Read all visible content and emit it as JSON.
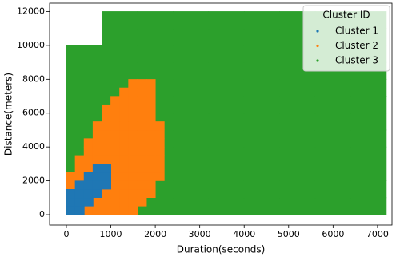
{
  "chart_data": {
    "type": "scatter",
    "x_label": "Duration(seconds)",
    "y_label": "Distance(meters)",
    "legend_title": "Cluster ID",
    "legend": "upper right",
    "grid": false,
    "xlim": [
      -378,
      7326
    ],
    "ylim": [
      -612,
      12494
    ],
    "xticks": [
      0,
      1000,
      2000,
      3000,
      4000,
      5000,
      6000,
      7000
    ],
    "yticks": [
      0,
      2000,
      4000,
      6000,
      8000,
      10000,
      12000
    ],
    "series": [
      {
        "name": "Cluster 1",
        "color": "#1f77b4",
        "x": [
          100,
          300,
          100,
          300,
          500,
          100,
          300,
          500,
          700,
          300,
          500,
          700,
          900,
          500,
          700,
          900,
          700,
          900
        ],
        "y": [
          250,
          250,
          750,
          750,
          750,
          1250,
          1250,
          1250,
          1250,
          1750,
          1750,
          1750,
          1750,
          2250,
          2250,
          2250,
          2750,
          2750
        ]
      },
      {
        "name": "Cluster 2",
        "color": "#ff7f0e",
        "x": [
          100,
          300,
          500,
          700,
          900,
          1100,
          1300,
          1500,
          100,
          300,
          500,
          700,
          900,
          1100,
          1300,
          1500,
          1700,
          100,
          300,
          500,
          700,
          900,
          1100,
          1300,
          1500,
          1700,
          1900,
          100,
          300,
          500,
          700,
          900,
          1100,
          1300,
          1500,
          1700,
          1900,
          100,
          300,
          500,
          700,
          900,
          1100,
          1300,
          1500,
          1700,
          1900,
          2100,
          300,
          500,
          700,
          900,
          1100,
          1300,
          1500,
          1700,
          1900,
          2100,
          300,
          500,
          700,
          900,
          1100,
          1300,
          1500,
          1700,
          1900,
          2100,
          500,
          700,
          900,
          1100,
          1300,
          1500,
          1700,
          1900,
          2100,
          500,
          700,
          900,
          1100,
          1300,
          1500,
          1700,
          1900,
          2100,
          700,
          900,
          1100,
          1300,
          1500,
          1700,
          1900,
          2100,
          700,
          900,
          1100,
          1300,
          1500,
          1700,
          1900,
          2100,
          900,
          1100,
          1300,
          1500,
          1700,
          1900,
          900,
          1100,
          1300,
          1500,
          1700,
          1900,
          1100,
          1300,
          1500,
          1700,
          1900,
          1300,
          1500,
          1700,
          1900,
          1500,
          1700,
          1900
        ],
        "y": [
          250,
          250,
          250,
          250,
          250,
          250,
          250,
          250,
          750,
          750,
          750,
          750,
          750,
          750,
          750,
          750,
          750,
          1250,
          1250,
          1250,
          1250,
          1250,
          1250,
          1250,
          1250,
          1250,
          1250,
          1750,
          1750,
          1750,
          1750,
          1750,
          1750,
          1750,
          1750,
          1750,
          1750,
          2250,
          2250,
          2250,
          2250,
          2250,
          2250,
          2250,
          2250,
          2250,
          2250,
          2250,
          2750,
          2750,
          2750,
          2750,
          2750,
          2750,
          2750,
          2750,
          2750,
          2750,
          3250,
          3250,
          3250,
          3250,
          3250,
          3250,
          3250,
          3250,
          3250,
          3250,
          3750,
          3750,
          3750,
          3750,
          3750,
          3750,
          3750,
          3750,
          3750,
          4250,
          4250,
          4250,
          4250,
          4250,
          4250,
          4250,
          4250,
          4250,
          4750,
          4750,
          4750,
          4750,
          4750,
          4750,
          4750,
          4750,
          5250,
          5250,
          5250,
          5250,
          5250,
          5250,
          5250,
          5250,
          5750,
          5750,
          5750,
          5750,
          5750,
          5750,
          6250,
          6250,
          6250,
          6250,
          6250,
          6250,
          6750,
          6750,
          6750,
          6750,
          6750,
          7250,
          7250,
          7250,
          7250,
          7750,
          7750,
          7750
        ]
      },
      {
        "name": "Cluster 3",
        "color": "#2ca02c",
        "x": [
          400,
          1200,
          2000,
          2800,
          3600,
          4400,
          5200,
          6000,
          6800,
          400,
          1200,
          2000,
          2800,
          3600,
          4400,
          5200,
          6000,
          6800,
          400,
          1200,
          2000,
          2800,
          3600,
          4400,
          5200,
          6000,
          6800,
          400,
          1200,
          2000,
          2800,
          3600,
          4400,
          5200,
          6000,
          6800,
          400,
          1200,
          2000,
          2800,
          3600,
          4400,
          5200,
          6000,
          6800,
          400,
          1200,
          2000,
          2800,
          3600,
          4400,
          5200,
          6000,
          6800,
          400,
          1200,
          2000,
          2800,
          3600,
          4400,
          5200,
          6000,
          6800,
          400,
          1200,
          2000,
          2800,
          3600,
          4400,
          5200,
          6000,
          6800,
          400,
          1200,
          2000,
          2800,
          3600,
          4400,
          5200,
          6000,
          6800,
          400,
          1200,
          2000,
          2800,
          3600,
          4400,
          5200,
          6000,
          6800,
          1200,
          2000,
          2800,
          3600,
          4400,
          5200,
          6000,
          6800,
          1200,
          2000,
          2800,
          3600,
          4400,
          5200,
          6000,
          6800
        ],
        "y": [
          500,
          500,
          500,
          500,
          500,
          500,
          500,
          500,
          500,
          1500,
          1500,
          1500,
          1500,
          1500,
          1500,
          1500,
          1500,
          1500,
          2500,
          2500,
          2500,
          2500,
          2500,
          2500,
          2500,
          2500,
          2500,
          3500,
          3500,
          3500,
          3500,
          3500,
          3500,
          3500,
          3500,
          3500,
          4500,
          4500,
          4500,
          4500,
          4500,
          4500,
          4500,
          4500,
          4500,
          5500,
          5500,
          5500,
          5500,
          5500,
          5500,
          5500,
          5500,
          5500,
          6500,
          6500,
          6500,
          6500,
          6500,
          6500,
          6500,
          6500,
          6500,
          7500,
          7500,
          7500,
          7500,
          7500,
          7500,
          7500,
          7500,
          7500,
          8500,
          8500,
          8500,
          8500,
          8500,
          8500,
          8500,
          8500,
          8500,
          9500,
          9500,
          9500,
          9500,
          9500,
          9500,
          9500,
          9500,
          9500,
          10500,
          10500,
          10500,
          10500,
          10500,
          10500,
          10500,
          10500,
          11500,
          11500,
          11500,
          11500,
          11500,
          11500,
          11500,
          11500
        ]
      }
    ]
  }
}
